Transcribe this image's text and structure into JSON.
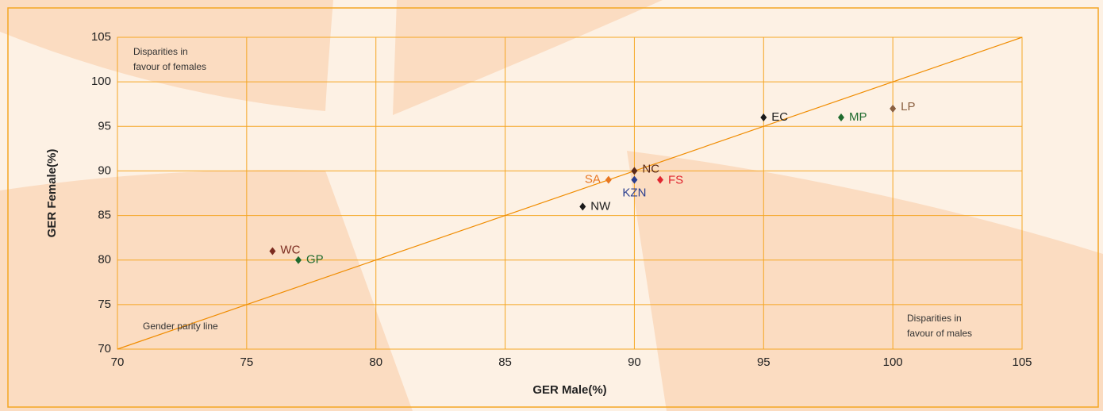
{
  "chart_data": {
    "type": "scatter",
    "x_label": "GER Male(%)",
    "y_label": "GER Female(%)",
    "xlim": [
      70,
      105
    ],
    "ylim": [
      70,
      105
    ],
    "xticks": [
      70,
      75,
      80,
      85,
      90,
      95,
      100,
      105
    ],
    "yticks": [
      70,
      75,
      80,
      85,
      90,
      95,
      100,
      105
    ],
    "grid": true,
    "grid_color": "#f5a623",
    "parity_line_label": "Gender parity line",
    "annotation_females": [
      "Disparities in",
      "favour of females"
    ],
    "annotation_males": [
      "Disparities in",
      "favour of males"
    ],
    "series": [
      {
        "name": "WC",
        "color": "#7b2b1f",
        "x": [
          76
        ],
        "values": [
          81
        ]
      },
      {
        "name": "GP",
        "color": "#1f6b2e",
        "x": [
          77
        ],
        "values": [
          80
        ]
      },
      {
        "name": "NW",
        "color": "#1a1a1a",
        "x": [
          88
        ],
        "values": [
          86
        ]
      },
      {
        "name": "SA",
        "color": "#e87722",
        "x": [
          89
        ],
        "values": [
          89
        ]
      },
      {
        "name": "NC",
        "color": "#5a2a1a",
        "x": [
          90
        ],
        "values": [
          90
        ]
      },
      {
        "name": "KZN",
        "color": "#2b3f8f",
        "x": [
          90
        ],
        "values": [
          89
        ]
      },
      {
        "name": "FS",
        "color": "#e0262f",
        "x": [
          91
        ],
        "values": [
          89
        ]
      },
      {
        "name": "EC",
        "color": "#1a1a1a",
        "x": [
          95
        ],
        "values": [
          96
        ]
      },
      {
        "name": "MP",
        "color": "#1f6b2e",
        "x": [
          98
        ],
        "values": [
          96
        ]
      },
      {
        "name": "LP",
        "color": "#8b6040",
        "x": [
          100
        ],
        "values": [
          97
        ]
      }
    ]
  }
}
